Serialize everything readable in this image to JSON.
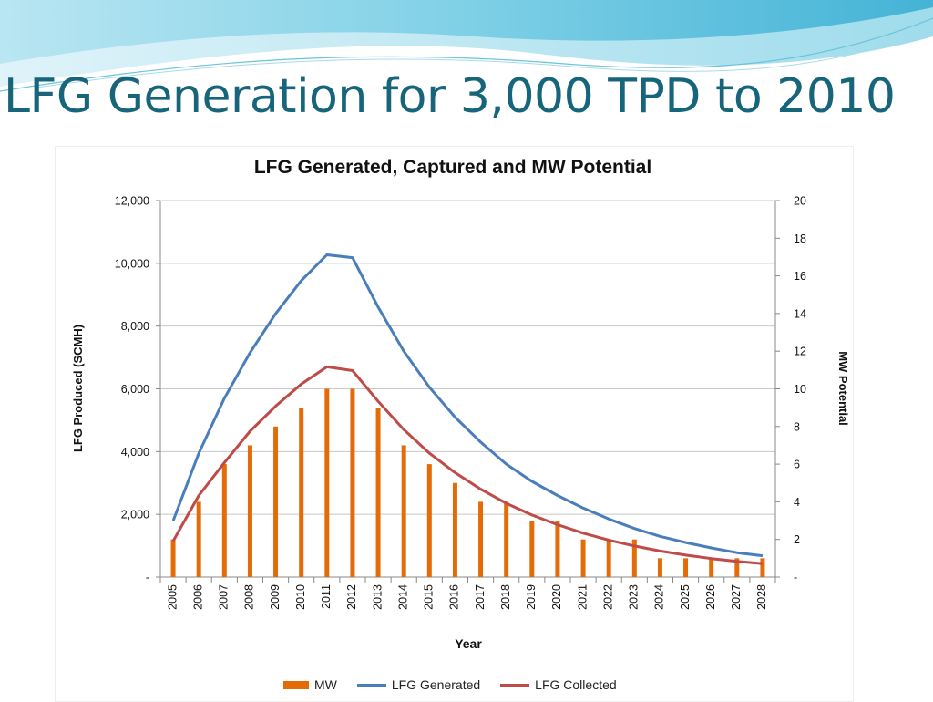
{
  "slide": {
    "title": "LFG Generation for 3,000 TPD to 2010"
  },
  "theme": {
    "title_color": "#17657b",
    "mw_color": "#e36c09",
    "generated_color": "#4a7ebb",
    "collected_color": "#be4b48"
  },
  "chart_data": {
    "type": "bar",
    "title": "LFG Generated, Captured and MW Potential",
    "xlabel": "Year",
    "ylabel": "LFG Produced (SCMH)",
    "y2label": "MW Potential",
    "categories": [
      "2005",
      "2006",
      "2007",
      "2008",
      "2009",
      "2010",
      "2011",
      "2012",
      "2013",
      "2014",
      "2015",
      "2016",
      "2017",
      "2018",
      "2019",
      "2020",
      "2021",
      "2022",
      "2023",
      "2024",
      "2025",
      "2026",
      "2027",
      "2028"
    ],
    "ylim": [
      0,
      12000
    ],
    "y2lim": [
      0,
      20
    ],
    "y_ticks": [
      "-",
      "2,000",
      "4,000",
      "6,000",
      "8,000",
      "10,000",
      "12,000"
    ],
    "y2_ticks": [
      "-",
      "2",
      "4",
      "6",
      "8",
      "10",
      "12",
      "14",
      "16",
      "18",
      "20"
    ],
    "grid": true,
    "legend_position": "bottom",
    "series": [
      {
        "name": "MW",
        "kind": "bar",
        "axis": "right",
        "values": [
          2,
          4,
          6,
          7,
          8,
          9,
          10,
          10,
          9,
          7,
          6,
          5,
          4,
          4,
          3,
          3,
          2,
          2,
          2,
          1,
          1,
          1,
          1,
          1
        ]
      },
      {
        "name": "LFG Generated",
        "kind": "line",
        "axis": "left",
        "values": [
          1800,
          3950,
          5700,
          7150,
          8400,
          9450,
          10270,
          10180,
          8600,
          7200,
          6050,
          5100,
          4300,
          3600,
          3050,
          2600,
          2200,
          1850,
          1550,
          1300,
          1100,
          930,
          780,
          680
        ]
      },
      {
        "name": "LFG Collected",
        "kind": "line",
        "axis": "left",
        "values": [
          1150,
          2600,
          3650,
          4650,
          5450,
          6150,
          6700,
          6580,
          5600,
          4700,
          3950,
          3330,
          2800,
          2350,
          1980,
          1670,
          1400,
          1180,
          990,
          830,
          700,
          590,
          500,
          430
        ]
      }
    ]
  }
}
